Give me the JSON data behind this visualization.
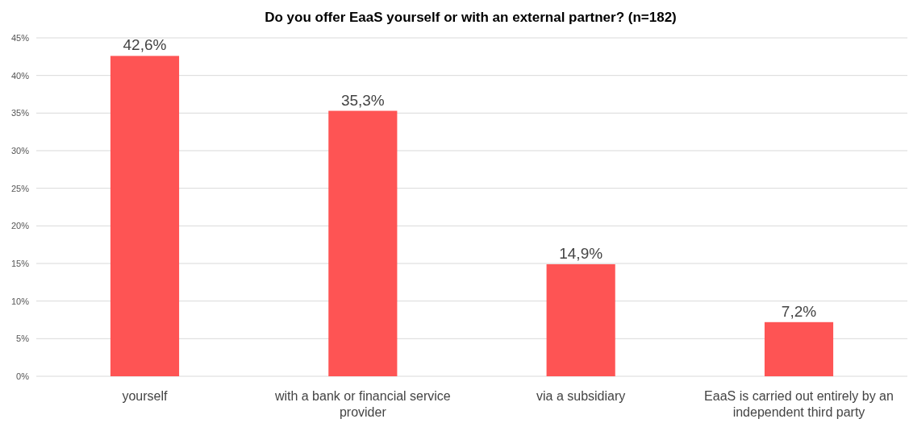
{
  "chart_data": {
    "type": "bar",
    "title": "Do you offer EaaS yourself or with an external partner? (n=182)",
    "categories": [
      "yourself",
      "with a bank or financial service provider",
      "via a subsidiary",
      "EaaS is carried out entirely by an independent third party"
    ],
    "values": [
      42.6,
      35.3,
      14.9,
      7.2
    ],
    "value_labels": [
      "42,6%",
      "35,3%",
      "14,9%",
      "7,2%"
    ],
    "color": "#fe5454",
    "ylim": [
      0,
      45
    ],
    "yticks": [
      {
        "value": 0,
        "label": "0%"
      },
      {
        "value": 5,
        "label": "5%"
      },
      {
        "value": 10,
        "label": "10%"
      },
      {
        "value": 15,
        "label": "15%"
      },
      {
        "value": 20,
        "label": "20%"
      },
      {
        "value": 25,
        "label": "25%"
      },
      {
        "value": 30,
        "label": "30%"
      },
      {
        "value": 35,
        "label": "35%"
      },
      {
        "value": 40,
        "label": "40%"
      },
      {
        "value": 45,
        "label": "45%"
      }
    ],
    "grid": true
  }
}
